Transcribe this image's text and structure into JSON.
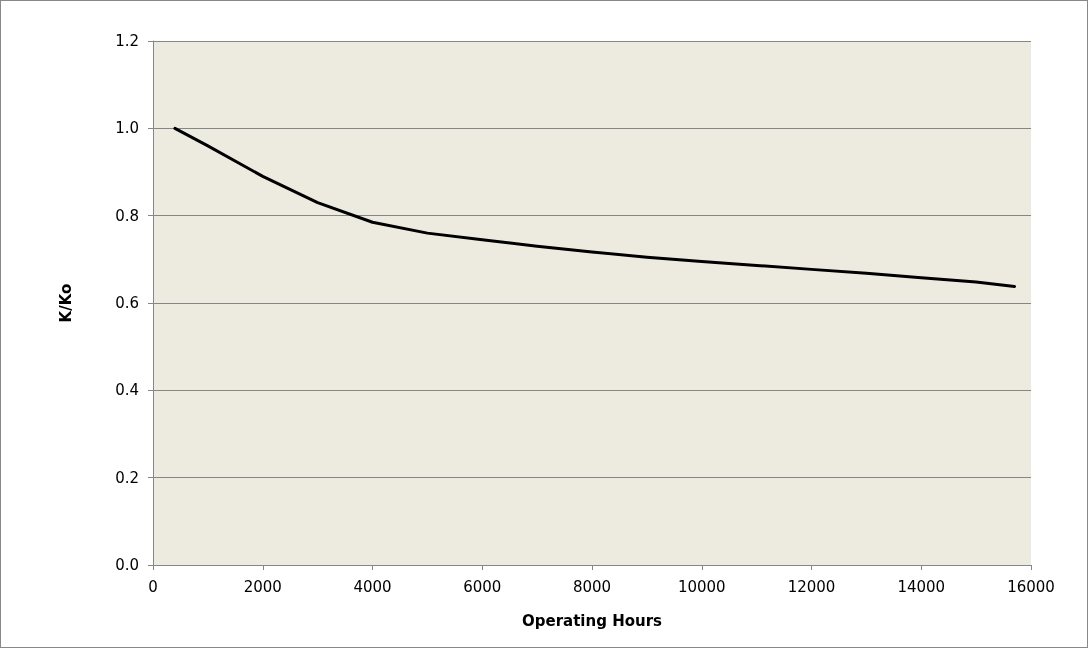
{
  "chart_data": {
    "type": "line",
    "xlabel": "Operating Hours",
    "ylabel": "K/Ko",
    "x": [
      400,
      1000,
      2000,
      3000,
      4000,
      5000,
      6000,
      7000,
      8000,
      9000,
      10000,
      11000,
      12000,
      13000,
      14000,
      15000,
      15700
    ],
    "series": [
      {
        "color": "#000000",
        "values": [
          1.0,
          0.96,
          0.89,
          0.83,
          0.785,
          0.76,
          0.745,
          0.73,
          0.717,
          0.705,
          0.695,
          0.686,
          0.677,
          0.668,
          0.658,
          0.648,
          0.638
        ]
      }
    ],
    "xlim": [
      0,
      16000
    ],
    "xticks": [
      0,
      2000,
      4000,
      6000,
      8000,
      10000,
      12000,
      14000,
      16000
    ],
    "ylim": [
      0,
      1.2
    ],
    "yticks": [
      {
        "value": 0,
        "label": "0.0"
      },
      0.2,
      0.4,
      0.6,
      0.8,
      {
        "value": 1,
        "label": "1.0"
      },
      1.2
    ],
    "grid": "y",
    "marker": "none",
    "line_style": "solid"
  }
}
